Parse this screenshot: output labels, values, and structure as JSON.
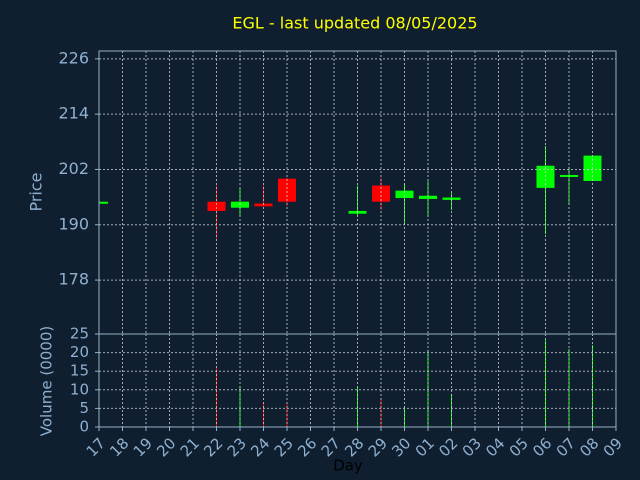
{
  "chart_data": {
    "type": "candlestick",
    "title": "EGL - last updated 08/05/2025",
    "ylabel": "Price",
    "xlabel": "Day",
    "categories": [
      "17",
      "18",
      "19",
      "20",
      "21",
      "22",
      "23",
      "24",
      "25",
      "26",
      "27",
      "28",
      "29",
      "30",
      "01",
      "02",
      "03",
      "04",
      "05",
      "06",
      "07",
      "08",
      "09"
    ],
    "open": [
      194.7,
      null,
      null,
      null,
      null,
      195.0,
      193.7,
      194.6,
      200.0,
      null,
      null,
      192.4,
      198.5,
      195.8,
      195.6,
      195.4,
      null,
      null,
      null,
      198.0,
      200.4,
      199.5,
      null
    ],
    "high": [
      195.0,
      null,
      null,
      null,
      null,
      198.5,
      198.0,
      198.5,
      200.2,
      null,
      null,
      198.5,
      200.2,
      198.9,
      199.5,
      196.9,
      null,
      null,
      null,
      207.1,
      202.6,
      205.0,
      null
    ],
    "low": [
      194.7,
      null,
      null,
      null,
      null,
      187.0,
      192.0,
      194.0,
      194.1,
      null,
      null,
      192.0,
      193.2,
      190.2,
      191.7,
      193.2,
      null,
      null,
      null,
      188.0,
      194.3,
      199.5,
      null
    ],
    "close": [
      195.0,
      null,
      null,
      null,
      null,
      193.0,
      195.0,
      194.0,
      195.0,
      null,
      null,
      193.0,
      195.0,
      197.4,
      196.3,
      195.9,
      null,
      null,
      null,
      202.8,
      200.8,
      205.0,
      null
    ],
    "up_color": "#00ff00",
    "down_color": "#ff0000",
    "ylim": [
      166.3,
      227.7
    ],
    "yticks": [
      178,
      190,
      202,
      214,
      226
    ],
    "grid": true,
    "volume": {
      "label": "Volume (0000)",
      "values": [
        null,
        null,
        null,
        null,
        null,
        16.4,
        10.8,
        6.5,
        6.2,
        null,
        null,
        10.8,
        7.8,
        5.4,
        20.7,
        8.9,
        null,
        null,
        null,
        23.4,
        21.0,
        22.0,
        null
      ],
      "ylim": [
        0,
        25
      ],
      "yticks": [
        0,
        5,
        10,
        15,
        20,
        25
      ]
    }
  }
}
